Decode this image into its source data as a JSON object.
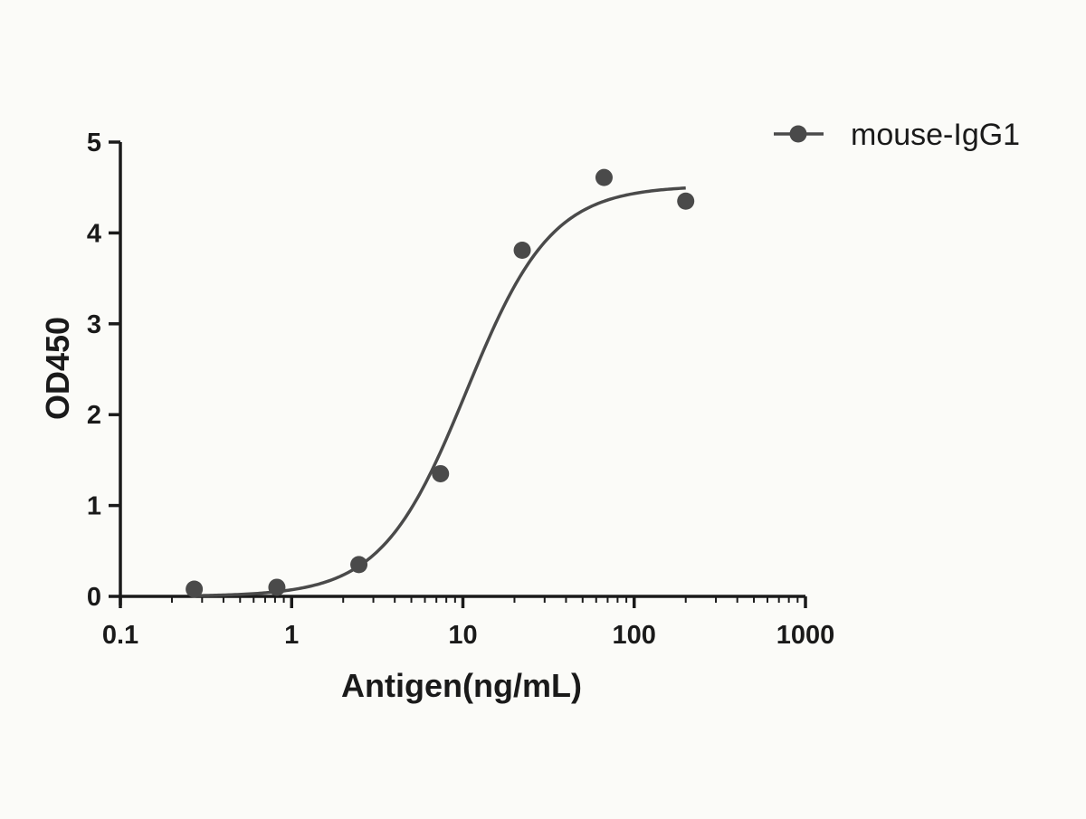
{
  "chart_data": {
    "type": "scatter",
    "xlabel": "Antigen(ng/mL)",
    "ylabel": "OD450",
    "x_scale": "log",
    "xlim": [
      0.1,
      1000
    ],
    "ylim": [
      0,
      5
    ],
    "x_ticks": [
      0.1,
      1,
      10,
      100,
      1000
    ],
    "x_tick_labels": [
      "0.1",
      "1",
      "10",
      "100",
      "1000"
    ],
    "y_ticks": [
      0,
      1,
      2,
      3,
      4,
      5
    ],
    "y_tick_labels": [
      "0",
      "1",
      "2",
      "3",
      "4",
      "5"
    ],
    "grid": false,
    "legend_position": "top-right",
    "colors": {
      "series": "#4a4a4a",
      "axis": "#1a1a1a",
      "background": "#fbfbf8"
    },
    "series": [
      {
        "name": "mouse-IgG1",
        "marker": "circle",
        "points": [
          {
            "x": 0.27,
            "y": 0.08
          },
          {
            "x": 0.82,
            "y": 0.1
          },
          {
            "x": 2.47,
            "y": 0.35
          },
          {
            "x": 7.4,
            "y": 1.35
          },
          {
            "x": 22.2,
            "y": 3.81
          },
          {
            "x": 66.7,
            "y": 4.61
          },
          {
            "x": 200,
            "y": 4.35
          }
        ],
        "fit": {
          "model": "4PL",
          "bottom": 0.0,
          "top": 4.52,
          "ec50": 10.5,
          "hill": 1.75,
          "x_range": [
            0.27,
            200
          ]
        }
      }
    ]
  }
}
